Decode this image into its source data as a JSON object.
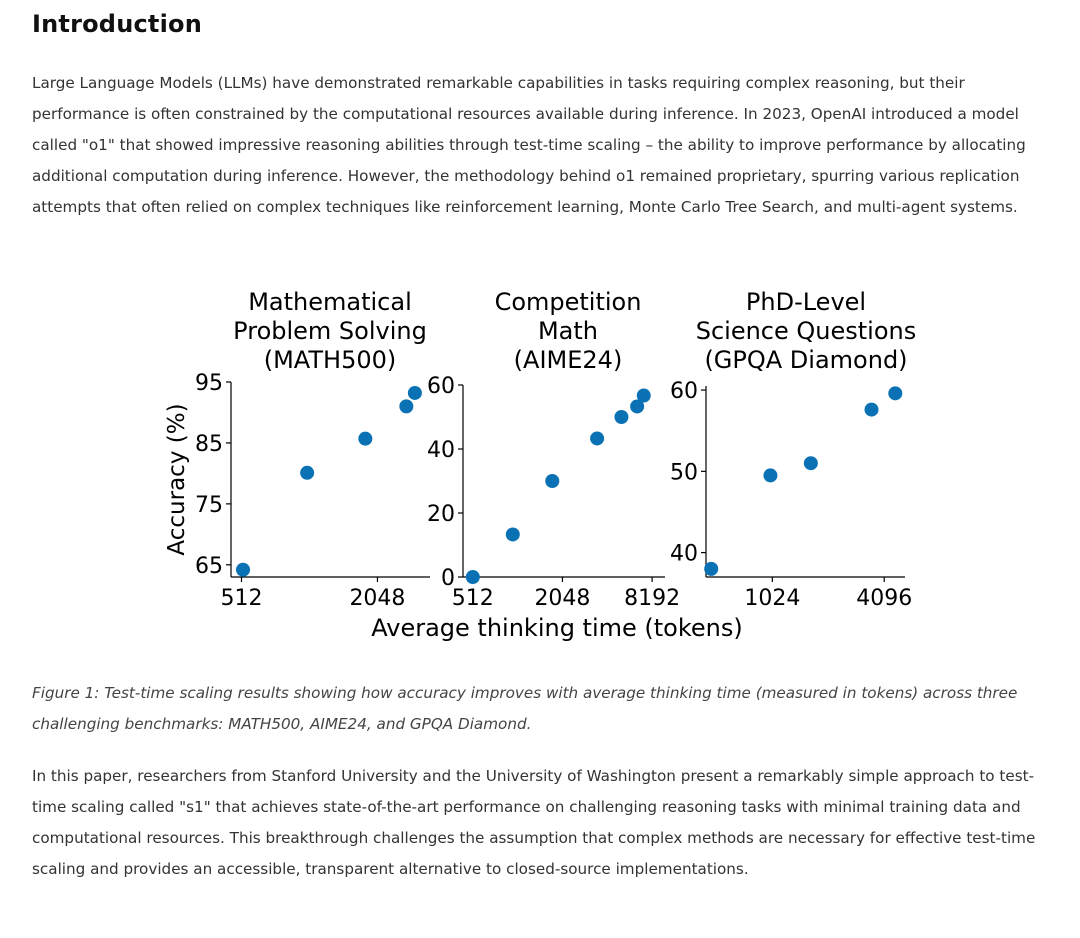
{
  "article": {
    "heading": "Introduction",
    "paragraph_1": "Large Language Models (LLMs) have demonstrated remarkable capabilities in tasks requiring complex reasoning, but their performance is often constrained by the computational resources available during inference. In 2023, OpenAI introduced a model called \"o1\" that showed impressive reasoning abilities through test-time scaling – the ability to improve performance by allocating additional computation during inference. However, the methodology behind o1 remained proprietary, spurring various replication attempts that often relied on complex techniques like reinforcement learning, Monte Carlo Tree Search, and multi-agent systems.",
    "caption": "Figure 1: Test-time scaling results showing how accuracy improves with average thinking time (measured in tokens) across three challenging benchmarks: MATH500, AIME24, and GPQA Diamond.",
    "paragraph_2": "In this paper, researchers from Stanford University and the University of Washington present a remarkably simple approach to test-time scaling called \"s1\" that achieves state-of-the-art performance on challenging reasoning tasks with minimal training data and computational resources. This breakthrough challenges the assumption that complex methods are necessary for effective test-time scaling and provides an accessible, transparent alternative to closed-source implementations."
  },
  "colors": {
    "marker": "#0a72b4",
    "axis": "#000000"
  },
  "chart_data": [
    {
      "type": "scatter",
      "title_lines": [
        "Mathematical",
        "Problem Solving",
        "(MATH500)"
      ],
      "ylabel": "Accuracy (%)",
      "xlabel": "Average thinking time (tokens)",
      "xscale": "log2",
      "xlim": [
        460,
        3500
      ],
      "ylim": [
        63,
        95
      ],
      "xticks": [
        {
          "value": 512,
          "label": "512"
        },
        {
          "value": 2048,
          "label": "2048"
        }
      ],
      "yticks": [
        {
          "value": 65,
          "label": "65"
        },
        {
          "value": 75,
          "label": "75"
        },
        {
          "value": 85,
          "label": "85"
        },
        {
          "value": 95,
          "label": "95"
        }
      ],
      "points": [
        {
          "x": 520,
          "y": 64.2
        },
        {
          "x": 1000,
          "y": 80.1
        },
        {
          "x": 1810,
          "y": 85.7
        },
        {
          "x": 2750,
          "y": 91.0
        },
        {
          "x": 3000,
          "y": 93.2
        }
      ]
    },
    {
      "type": "scatter",
      "title_lines": [
        "Competition",
        "Math",
        "(AIME24)"
      ],
      "ylabel": "",
      "xlabel": "Average thinking time (tokens)",
      "xscale": "log2",
      "xlim": [
        440,
        10000
      ],
      "ylim": [
        0,
        60
      ],
      "xticks": [
        {
          "value": 512,
          "label": "512"
        },
        {
          "value": 2048,
          "label": "2048"
        },
        {
          "value": 8192,
          "label": "8192"
        }
      ],
      "yticks": [
        {
          "value": 0,
          "label": "0"
        },
        {
          "value": 20,
          "label": "20"
        },
        {
          "value": 40,
          "label": "40"
        },
        {
          "value": 60,
          "label": "60"
        }
      ],
      "points": [
        {
          "x": 512,
          "y": 0.0
        },
        {
          "x": 950,
          "y": 13.3
        },
        {
          "x": 1750,
          "y": 30.0
        },
        {
          "x": 3500,
          "y": 43.3
        },
        {
          "x": 5100,
          "y": 50.0
        },
        {
          "x": 6500,
          "y": 53.3
        },
        {
          "x": 7200,
          "y": 56.7
        }
      ]
    },
    {
      "type": "scatter",
      "title_lines": [
        "PhD-Level",
        "Science Questions",
        "(GPQA Diamond)"
      ],
      "ylabel": "",
      "xlabel": "Average thinking time (tokens)",
      "xscale": "log2",
      "xlim": [
        450,
        5300
      ],
      "ylim": [
        37,
        60.5
      ],
      "xticks": [
        {
          "value": 1024,
          "label": "1024"
        },
        {
          "value": 4096,
          "label": "4096"
        }
      ],
      "yticks": [
        {
          "value": 40,
          "label": "40"
        },
        {
          "value": 50,
          "label": "50"
        },
        {
          "value": 60,
          "label": "60"
        }
      ],
      "points": [
        {
          "x": 480,
          "y": 38.0
        },
        {
          "x": 1000,
          "y": 49.5
        },
        {
          "x": 1650,
          "y": 51.0
        },
        {
          "x": 3500,
          "y": 57.6
        },
        {
          "x": 4700,
          "y": 59.6
        }
      ]
    }
  ]
}
